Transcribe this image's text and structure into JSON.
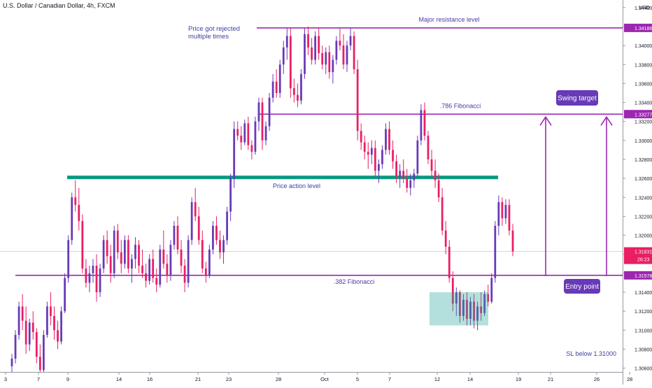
{
  "chart_data": {
    "type": "candlestick",
    "title": "U.S. Dollar / Canadian Dollar, 4h, FXCM",
    "currency": "USD",
    "ylim": [
      1.3056,
      1.3448
    ],
    "y_ticks": [
      1.344,
      1.342,
      1.34,
      1.338,
      1.336,
      1.334,
      1.332,
      1.33,
      1.328,
      1.326,
      1.324,
      1.322,
      1.32,
      1.318,
      1.316,
      1.314,
      1.312,
      1.31,
      1.308,
      1.306
    ],
    "y_tick_labels": [
      "1.34400",
      "1.34200",
      "1.34000",
      "1.33800",
      "1.33600",
      "1.33400",
      "1.33200",
      "1.33000",
      "1.32800",
      "1.32600",
      "1.32400",
      "1.32200",
      "1.32000",
      "1.31800",
      "1.31600",
      "1.31400",
      "1.31200",
      "1.31000",
      "1.30800",
      "1.30600"
    ],
    "x_ticks": [
      "3",
      "7",
      "9",
      "14",
      "16",
      "21",
      "23",
      "28",
      "Oct",
      "5",
      "7",
      "12",
      "14",
      "19",
      "21",
      "26",
      "28"
    ],
    "last_price": "1.31831",
    "countdown": "26:23",
    "bull_color": "#673ab7",
    "bear_color": "#e91e63",
    "levels": [
      {
        "name": "major-resistance",
        "price": 1.34186,
        "label": "Major resistance level",
        "price_label": "1.34186",
        "color": "#9c27b0"
      },
      {
        "name": "fibonacci-786",
        "price": 1.33277,
        "label": ".786 Fibonacci",
        "price_label": "1.33277",
        "color": "#9c27b0"
      },
      {
        "name": "price-action",
        "price": 1.3261,
        "label": "Price action level",
        "color": "#089981"
      },
      {
        "name": "fibonacci-382",
        "price": 1.31578,
        "label": ".382 Fibonacci",
        "price_label": "1.31578",
        "color": "#9c27b0"
      }
    ],
    "annotations": {
      "rejected_line1": "Price got rejected",
      "rejected_line2": "multiple times",
      "swing_target": "Swing target",
      "entry_point": "Entry point",
      "stop_loss": "SL below 1.31000"
    },
    "candles": [
      [
        1.3062,
        1.3075,
        1.3052,
        1.307
      ],
      [
        1.307,
        1.31,
        1.3065,
        1.3095
      ],
      [
        1.3095,
        1.313,
        1.309,
        1.3125
      ],
      [
        1.3125,
        1.3138,
        1.31,
        1.311
      ],
      [
        1.311,
        1.3125,
        1.3075,
        1.3085
      ],
      [
        1.3085,
        1.3112,
        1.3078,
        1.3108
      ],
      [
        1.3108,
        1.312,
        1.309,
        1.3098
      ],
      [
        1.3098,
        1.3102,
        1.3065,
        1.3072
      ],
      [
        1.3072,
        1.3085,
        1.305,
        1.3058
      ],
      [
        1.3058,
        1.31,
        1.3055,
        1.3095
      ],
      [
        1.3095,
        1.313,
        1.3092,
        1.3125
      ],
      [
        1.3125,
        1.314,
        1.3105,
        1.3115
      ],
      [
        1.3115,
        1.3125,
        1.309,
        1.31
      ],
      [
        1.31,
        1.311,
        1.308,
        1.3088
      ],
      [
        1.3088,
        1.3125,
        1.3085,
        1.312
      ],
      [
        1.312,
        1.316,
        1.3118,
        1.3155
      ],
      [
        1.3155,
        1.32,
        1.315,
        1.3195
      ],
      [
        1.3195,
        1.3245,
        1.319,
        1.324
      ],
      [
        1.324,
        1.3258,
        1.3225,
        1.3232
      ],
      [
        1.3232,
        1.325,
        1.3205,
        1.3215
      ],
      [
        1.3215,
        1.3222,
        1.316,
        1.3165
      ],
      [
        1.3165,
        1.3175,
        1.3145,
        1.315
      ],
      [
        1.315,
        1.3168,
        1.314,
        1.316
      ],
      [
        1.316,
        1.3175,
        1.315,
        1.3168
      ],
      [
        1.3168,
        1.318,
        1.313,
        1.314
      ],
      [
        1.314,
        1.317,
        1.3135,
        1.3165
      ],
      [
        1.3165,
        1.32,
        1.316,
        1.3195
      ],
      [
        1.3195,
        1.3205,
        1.317,
        1.3178
      ],
      [
        1.3178,
        1.319,
        1.315,
        1.316
      ],
      [
        1.316,
        1.321,
        1.3155,
        1.3205
      ],
      [
        1.3205,
        1.3212,
        1.3175,
        1.3182
      ],
      [
        1.3182,
        1.3195,
        1.316,
        1.317
      ],
      [
        1.317,
        1.32,
        1.3165,
        1.3195
      ],
      [
        1.3195,
        1.32,
        1.316,
        1.3165
      ],
      [
        1.3165,
        1.318,
        1.315,
        1.3175
      ],
      [
        1.3175,
        1.3198,
        1.3165,
        1.319
      ],
      [
        1.319,
        1.3195,
        1.316,
        1.3168
      ],
      [
        1.3168,
        1.3185,
        1.3155,
        1.316
      ],
      [
        1.316,
        1.317,
        1.3145,
        1.3152
      ],
      [
        1.3152,
        1.318,
        1.3148,
        1.3175
      ],
      [
        1.3175,
        1.3185,
        1.315,
        1.3155
      ],
      [
        1.3155,
        1.3165,
        1.314,
        1.3148
      ],
      [
        1.3148,
        1.319,
        1.3145,
        1.3185
      ],
      [
        1.3185,
        1.3205,
        1.3165,
        1.317
      ],
      [
        1.317,
        1.318,
        1.315,
        1.3158
      ],
      [
        1.3158,
        1.3195,
        1.3152,
        1.319
      ],
      [
        1.319,
        1.3215,
        1.3185,
        1.321
      ],
      [
        1.321,
        1.322,
        1.318,
        1.3185
      ],
      [
        1.3185,
        1.3195,
        1.316,
        1.3168
      ],
      [
        1.3168,
        1.3175,
        1.314,
        1.315
      ],
      [
        1.315,
        1.32,
        1.3145,
        1.3195
      ],
      [
        1.3195,
        1.324,
        1.319,
        1.3235
      ],
      [
        1.3235,
        1.325,
        1.3215,
        1.322
      ],
      [
        1.322,
        1.323,
        1.319,
        1.3195
      ],
      [
        1.3195,
        1.3205,
        1.316,
        1.3165
      ],
      [
        1.3165,
        1.3172,
        1.315,
        1.3158
      ],
      [
        1.3158,
        1.319,
        1.3155,
        1.3185
      ],
      [
        1.3185,
        1.3215,
        1.318,
        1.321
      ],
      [
        1.321,
        1.322,
        1.319,
        1.3195
      ],
      [
        1.3195,
        1.3205,
        1.3175,
        1.3182
      ],
      [
        1.3182,
        1.32,
        1.317,
        1.3195
      ],
      [
        1.3195,
        1.323,
        1.319,
        1.3225
      ],
      [
        1.3225,
        1.3265,
        1.3215,
        1.326
      ],
      [
        1.326,
        1.332,
        1.325,
        1.3312
      ],
      [
        1.3312,
        1.332,
        1.33,
        1.3305
      ],
      [
        1.3305,
        1.3315,
        1.329,
        1.3298
      ],
      [
        1.3298,
        1.3322,
        1.3295,
        1.3318
      ],
      [
        1.3318,
        1.3325,
        1.329,
        1.3295
      ],
      [
        1.3295,
        1.33,
        1.328,
        1.3288
      ],
      [
        1.3288,
        1.3325,
        1.3285,
        1.332
      ],
      [
        1.332,
        1.3345,
        1.331,
        1.334
      ],
      [
        1.334,
        1.3345,
        1.329,
        1.33
      ],
      [
        1.33,
        1.332,
        1.3295,
        1.3315
      ],
      [
        1.3315,
        1.335,
        1.331,
        1.3345
      ],
      [
        1.3345,
        1.337,
        1.334,
        1.3362
      ],
      [
        1.3362,
        1.3375,
        1.3345,
        1.335
      ],
      [
        1.335,
        1.3385,
        1.3345,
        1.338
      ],
      [
        1.338,
        1.3405,
        1.337,
        1.3398
      ],
      [
        1.3398,
        1.3418,
        1.3385,
        1.341
      ],
      [
        1.341,
        1.3418,
        1.3345,
        1.3355
      ],
      [
        1.3355,
        1.3365,
        1.334,
        1.3348
      ],
      [
        1.3348,
        1.336,
        1.3335,
        1.3342
      ],
      [
        1.3342,
        1.3375,
        1.3338,
        1.337
      ],
      [
        1.337,
        1.3418,
        1.3365,
        1.3412
      ],
      [
        1.3412,
        1.342,
        1.339,
        1.3398
      ],
      [
        1.3398,
        1.3408,
        1.338,
        1.3385
      ],
      [
        1.3385,
        1.3415,
        1.338,
        1.341
      ],
      [
        1.341,
        1.3418,
        1.3385,
        1.3392
      ],
      [
        1.3392,
        1.34,
        1.3375,
        1.338
      ],
      [
        1.338,
        1.3398,
        1.337,
        1.3393
      ],
      [
        1.3393,
        1.34,
        1.3365,
        1.3372
      ],
      [
        1.3372,
        1.339,
        1.336,
        1.3385
      ],
      [
        1.3385,
        1.341,
        1.338,
        1.3405
      ],
      [
        1.3405,
        1.3418,
        1.3395,
        1.34
      ],
      [
        1.34,
        1.3412,
        1.3375,
        1.338
      ],
      [
        1.338,
        1.3405,
        1.3372,
        1.34
      ],
      [
        1.34,
        1.3419,
        1.3395,
        1.341
      ],
      [
        1.341,
        1.3415,
        1.337,
        1.3375
      ],
      [
        1.3375,
        1.3385,
        1.33,
        1.331
      ],
      [
        1.331,
        1.3318,
        1.329,
        1.3298
      ],
      [
        1.3298,
        1.3305,
        1.328,
        1.3288
      ],
      [
        1.3288,
        1.3298,
        1.327,
        1.3285
      ],
      [
        1.3285,
        1.33,
        1.3275,
        1.3292
      ],
      [
        1.3292,
        1.33,
        1.326,
        1.3268
      ],
      [
        1.3268,
        1.328,
        1.3255,
        1.3275
      ],
      [
        1.3275,
        1.3295,
        1.327,
        1.329
      ],
      [
        1.329,
        1.3318,
        1.3285,
        1.3312
      ],
      [
        1.3312,
        1.332,
        1.3285,
        1.329
      ],
      [
        1.329,
        1.33,
        1.327,
        1.3278
      ],
      [
        1.3278,
        1.3285,
        1.3255,
        1.3262
      ],
      [
        1.3262,
        1.3275,
        1.325,
        1.3268
      ],
      [
        1.3268,
        1.328,
        1.3255,
        1.326
      ],
      [
        1.326,
        1.327,
        1.3245,
        1.325
      ],
      [
        1.325,
        1.3265,
        1.3242,
        1.3258
      ],
      [
        1.3258,
        1.327,
        1.325,
        1.3265
      ],
      [
        1.3265,
        1.3305,
        1.326,
        1.33
      ],
      [
        1.33,
        1.3338,
        1.3295,
        1.3332
      ],
      [
        1.3332,
        1.334,
        1.33,
        1.3305
      ],
      [
        1.3305,
        1.331,
        1.3275,
        1.328
      ],
      [
        1.328,
        1.329,
        1.326,
        1.3268
      ],
      [
        1.3268,
        1.328,
        1.325,
        1.3258
      ],
      [
        1.3258,
        1.3265,
        1.3235,
        1.324
      ],
      [
        1.324,
        1.325,
        1.32,
        1.3205
      ],
      [
        1.3205,
        1.3215,
        1.318,
        1.3188
      ],
      [
        1.3188,
        1.3195,
        1.315,
        1.3155
      ],
      [
        1.3155,
        1.3162,
        1.312,
        1.3128
      ],
      [
        1.3128,
        1.3145,
        1.3115,
        1.314
      ],
      [
        1.314,
        1.3142,
        1.3108,
        1.3115
      ],
      [
        1.3115,
        1.3138,
        1.311,
        1.3132
      ],
      [
        1.3132,
        1.314,
        1.3105,
        1.3112
      ],
      [
        1.3112,
        1.3135,
        1.3105,
        1.313
      ],
      [
        1.313,
        1.3138,
        1.3102,
        1.311
      ],
      [
        1.311,
        1.313,
        1.31,
        1.3125
      ],
      [
        1.3125,
        1.314,
        1.311,
        1.3118
      ],
      [
        1.3118,
        1.3142,
        1.3115,
        1.3138
      ],
      [
        1.3138,
        1.3148,
        1.3125,
        1.313
      ],
      [
        1.313,
        1.316,
        1.3128,
        1.3155
      ],
      [
        1.3155,
        1.3215,
        1.315,
        1.321
      ],
      [
        1.321,
        1.3242,
        1.32,
        1.3235
      ],
      [
        1.3235,
        1.324,
        1.321,
        1.3218
      ],
      [
        1.3218,
        1.3238,
        1.3212,
        1.3232
      ],
      [
        1.3232,
        1.3238,
        1.32,
        1.3205
      ],
      [
        1.3205,
        1.3212,
        1.3178,
        1.3183
      ]
    ]
  }
}
